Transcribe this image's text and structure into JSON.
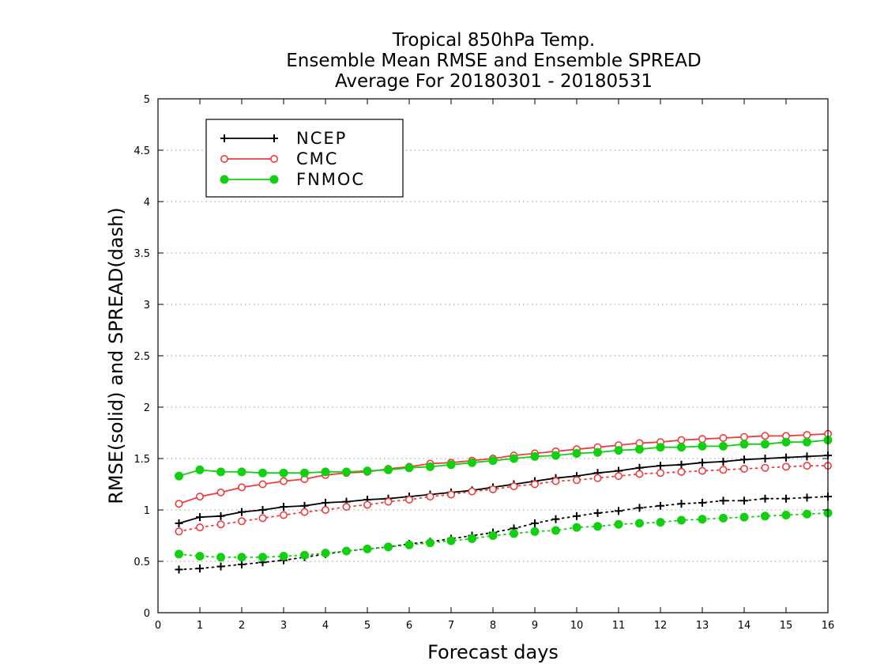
{
  "chart_data": {
    "type": "line",
    "title_lines": [
      "Tropical 850hPa Temp.",
      "Ensemble Mean RMSE and Ensemble SPREAD",
      "Average For 20180301 - 20180531"
    ],
    "xlabel": "Forecast days",
    "ylabel": "RMSE(solid) and SPREAD(dash)",
    "xlim": [
      0,
      16
    ],
    "ylim": [
      0,
      5
    ],
    "x_ticks": [
      "0",
      "1",
      "2",
      "3",
      "4",
      "5",
      "6",
      "7",
      "8",
      "9",
      "10",
      "11",
      "12",
      "13",
      "14",
      "15",
      "16"
    ],
    "y_ticks": [
      "0",
      "0.5",
      "1",
      "1.5",
      "2",
      "2.5",
      "3",
      "3.5",
      "4",
      "4.5",
      "5"
    ],
    "grid": "horizontal dotted",
    "legend_position": "top-left",
    "x": [
      0.5,
      1,
      1.5,
      2,
      2.5,
      3,
      3.5,
      4,
      4.5,
      5,
      5.5,
      6,
      6.5,
      7,
      7.5,
      8,
      8.5,
      9,
      9.5,
      10,
      10.5,
      11,
      11.5,
      12,
      12.5,
      13,
      13.5,
      14,
      14.5,
      15,
      15.5,
      16
    ],
    "series": [
      {
        "name": "NCEP",
        "color": "#000000",
        "marker": "plus",
        "rmse": [
          0.87,
          0.93,
          0.94,
          0.98,
          1.0,
          1.03,
          1.04,
          1.07,
          1.08,
          1.1,
          1.11,
          1.13,
          1.15,
          1.17,
          1.19,
          1.22,
          1.25,
          1.28,
          1.31,
          1.33,
          1.36,
          1.38,
          1.41,
          1.43,
          1.44,
          1.46,
          1.47,
          1.49,
          1.5,
          1.51,
          1.52,
          1.53
        ],
        "spread": [
          0.42,
          0.43,
          0.45,
          0.47,
          0.49,
          0.51,
          0.54,
          0.57,
          0.6,
          0.62,
          0.64,
          0.67,
          0.69,
          0.72,
          0.75,
          0.78,
          0.82,
          0.87,
          0.91,
          0.94,
          0.97,
          0.99,
          1.02,
          1.04,
          1.06,
          1.07,
          1.09,
          1.09,
          1.11,
          1.11,
          1.12,
          1.13
        ]
      },
      {
        "name": "CMC",
        "color": "#ef3b3b",
        "marker": "open-circle",
        "rmse": [
          1.06,
          1.13,
          1.17,
          1.22,
          1.25,
          1.28,
          1.3,
          1.34,
          1.36,
          1.37,
          1.4,
          1.42,
          1.45,
          1.46,
          1.48,
          1.5,
          1.53,
          1.55,
          1.57,
          1.59,
          1.61,
          1.63,
          1.65,
          1.66,
          1.68,
          1.69,
          1.7,
          1.71,
          1.72,
          1.72,
          1.73,
          1.74
        ],
        "spread": [
          0.79,
          0.83,
          0.86,
          0.89,
          0.92,
          0.95,
          0.98,
          1.0,
          1.03,
          1.05,
          1.08,
          1.1,
          1.13,
          1.15,
          1.18,
          1.2,
          1.23,
          1.25,
          1.28,
          1.29,
          1.31,
          1.33,
          1.35,
          1.36,
          1.37,
          1.38,
          1.39,
          1.4,
          1.41,
          1.42,
          1.43,
          1.43
        ]
      },
      {
        "name": "FNMOC",
        "color": "#10d010",
        "marker": "filled-circle",
        "rmse": [
          1.33,
          1.39,
          1.37,
          1.37,
          1.36,
          1.36,
          1.36,
          1.37,
          1.37,
          1.38,
          1.39,
          1.41,
          1.42,
          1.44,
          1.46,
          1.48,
          1.5,
          1.52,
          1.53,
          1.55,
          1.56,
          1.58,
          1.59,
          1.61,
          1.61,
          1.62,
          1.62,
          1.64,
          1.64,
          1.66,
          1.66,
          1.68
        ],
        "spread": [
          0.57,
          0.55,
          0.54,
          0.54,
          0.54,
          0.55,
          0.56,
          0.58,
          0.6,
          0.62,
          0.64,
          0.66,
          0.68,
          0.7,
          0.72,
          0.75,
          0.77,
          0.79,
          0.8,
          0.83,
          0.84,
          0.86,
          0.87,
          0.88,
          0.9,
          0.91,
          0.92,
          0.93,
          0.94,
          0.95,
          0.96,
          0.97
        ]
      }
    ]
  }
}
